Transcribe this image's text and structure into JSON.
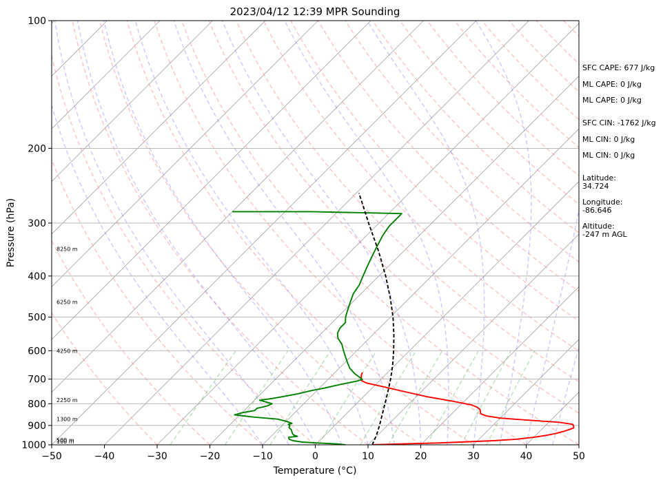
{
  "chart_data": {
    "type": "line",
    "title": "2023/04/12 12:39 MPR Sounding",
    "xlabel": "Temperature (°C)",
    "ylabel": "Pressure (hPa)",
    "xlim": [
      -50,
      50
    ],
    "ylim": [
      1000,
      100
    ],
    "y_scale": "log",
    "x_ticks": [
      -50,
      -40,
      -30,
      -20,
      -10,
      0,
      10,
      20,
      30,
      40,
      50
    ],
    "x_tick_labels": [
      "−50",
      "−40",
      "−30",
      "−20",
      "−10",
      "0",
      "10",
      "20",
      "30",
      "40",
      "50"
    ],
    "y_ticks": [
      100,
      200,
      300,
      400,
      500,
      600,
      700,
      800,
      900,
      1000
    ],
    "y_tick_labels": [
      "100",
      "200",
      "300",
      "400",
      "500",
      "600",
      "700",
      "800",
      "900",
      "1000"
    ],
    "grid": true,
    "skew_t": true,
    "height_labels": [
      {
        "p": 1000,
        "label": "100 m"
      },
      {
        "p": 975,
        "label": "500 m"
      },
      {
        "p": 870,
        "label": "1300 m"
      },
      {
        "p": 785,
        "label": "2250 m"
      },
      {
        "p": 600,
        "label": "4250 m"
      },
      {
        "p": 460,
        "label": "6250 m"
      },
      {
        "p": 345,
        "label": "8250 m"
      }
    ],
    "series": [
      {
        "role": "temperature",
        "color": "#ff0000",
        "points": [
          [
            1000,
            10.8
          ],
          [
            995,
            16
          ],
          [
            990,
            23
          ],
          [
            985,
            27
          ],
          [
            978,
            33
          ],
          [
            970,
            37
          ],
          [
            960,
            40
          ],
          [
            950,
            42
          ],
          [
            940,
            43.5
          ],
          [
            930,
            44.5
          ],
          [
            920,
            45.3
          ],
          [
            912,
            45.8
          ],
          [
            905,
            45.5
          ],
          [
            895,
            45
          ],
          [
            885,
            42
          ],
          [
            875,
            36
          ],
          [
            865,
            30
          ],
          [
            855,
            27
          ],
          [
            845,
            25.5
          ],
          [
            835,
            25
          ],
          [
            825,
            24.5
          ],
          [
            815,
            23.5
          ],
          [
            805,
            22
          ],
          [
            790,
            18
          ],
          [
            770,
            12
          ],
          [
            750,
            7
          ],
          [
            730,
            2
          ],
          [
            715,
            -2
          ],
          [
            705,
            -3.5
          ],
          [
            695,
            -4
          ],
          [
            685,
            -4.5
          ],
          [
            675,
            -4.8
          ]
        ]
      },
      {
        "role": "dewpoint",
        "color": "#008000",
        "points": [
          [
            1000,
            5.7
          ],
          [
            995,
            4
          ],
          [
            990,
            0
          ],
          [
            985,
            -3
          ],
          [
            978,
            -5
          ],
          [
            970,
            -6
          ],
          [
            960,
            -6.5
          ],
          [
            955,
            -5
          ],
          [
            948,
            -6
          ],
          [
            940,
            -6.5
          ],
          [
            930,
            -7
          ],
          [
            920,
            -7.5
          ],
          [
            910,
            -8.3
          ],
          [
            900,
            -8.5
          ],
          [
            895,
            -9
          ],
          [
            890,
            -8.5
          ],
          [
            880,
            -10
          ],
          [
            870,
            -12
          ],
          [
            860,
            -17
          ],
          [
            850,
            -21
          ],
          [
            840,
            -20
          ],
          [
            830,
            -18
          ],
          [
            820,
            -18
          ],
          [
            810,
            -16.5
          ],
          [
            800,
            -16
          ],
          [
            795,
            -17
          ],
          [
            790,
            -18
          ],
          [
            785,
            -19
          ],
          [
            778,
            -17
          ],
          [
            768,
            -15
          ],
          [
            758,
            -13
          ],
          [
            745,
            -11
          ],
          [
            735,
            -9
          ],
          [
            722,
            -7
          ],
          [
            712,
            -5
          ],
          [
            706,
            -4
          ],
          [
            701,
            -3.5
          ],
          [
            680,
            -6
          ],
          [
            660,
            -8
          ],
          [
            640,
            -9.5
          ],
          [
            620,
            -11
          ],
          [
            600,
            -12.5
          ],
          [
            580,
            -14
          ],
          [
            560,
            -16
          ],
          [
            545,
            -17
          ],
          [
            530,
            -17.5
          ],
          [
            515,
            -17.5
          ],
          [
            500,
            -18.5
          ],
          [
            480,
            -19.5
          ],
          [
            460,
            -20.5
          ],
          [
            440,
            -21.5
          ],
          [
            420,
            -22
          ],
          [
            400,
            -23
          ],
          [
            380,
            -24
          ],
          [
            360,
            -25
          ],
          [
            340,
            -26
          ],
          [
            320,
            -27
          ],
          [
            305,
            -27.5
          ],
          [
            295,
            -27.5
          ],
          [
            285,
            -27.5
          ],
          [
            282,
            -45
          ],
          [
            282,
            -60
          ]
        ]
      },
      {
        "role": "parcel",
        "color": "#000000",
        "points": [
          [
            1000,
            10.8
          ],
          [
            950,
            9.8
          ],
          [
            900,
            8.5
          ],
          [
            850,
            7.0
          ],
          [
            800,
            5.4
          ],
          [
            750,
            3.7
          ],
          [
            700,
            1.8
          ],
          [
            650,
            -0.4
          ],
          [
            600,
            -3.0
          ],
          [
            550,
            -6.0
          ],
          [
            500,
            -9.5
          ],
          [
            450,
            -13.7
          ],
          [
            400,
            -18.7
          ],
          [
            350,
            -24.7
          ],
          [
            300,
            -32.0
          ],
          [
            255,
            -39.5
          ]
        ]
      }
    ],
    "stats": [
      {
        "label": "SFC CAPE: 677 J/kg"
      },
      {
        "label": "ML CAPE: 0 J/kg"
      },
      {
        "label": "ML CAPE: 0 J/kg"
      },
      {
        "label": "SFC CIN: -1762 J/kg"
      },
      {
        "label": "ML CIN: 0 J/kg"
      },
      {
        "label": "ML CIN: 0 J/kg"
      }
    ],
    "location": [
      {
        "label": "Latitude:",
        "value": "34.724"
      },
      {
        "label": "Longitude:",
        "value": "-86.646"
      },
      {
        "label": "Altitude:",
        "value": "-247 m AGL"
      }
    ]
  }
}
